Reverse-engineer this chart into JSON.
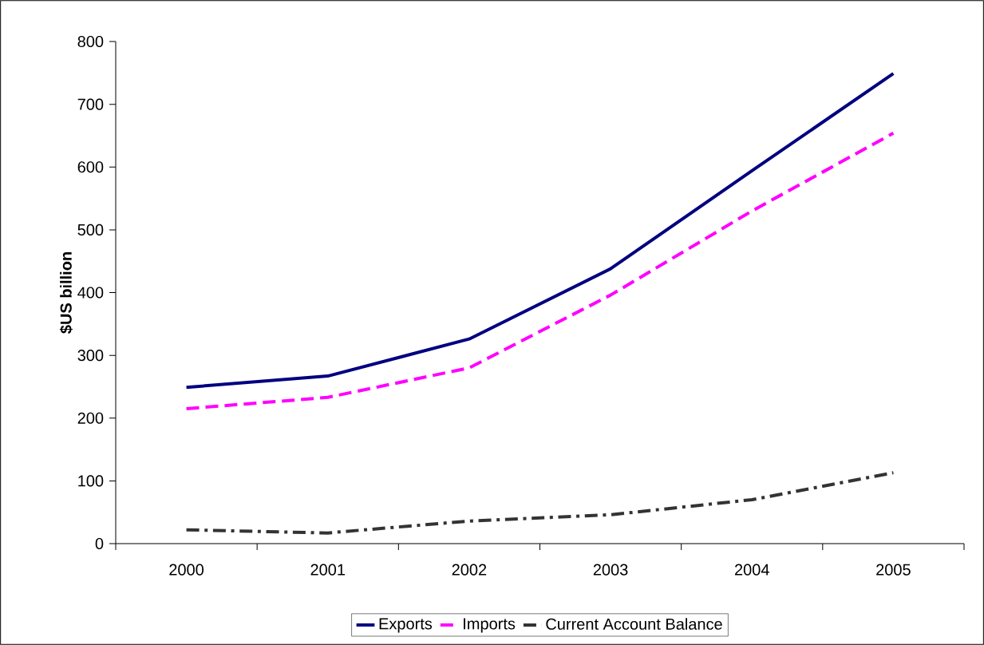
{
  "chart_data": {
    "type": "line",
    "ylabel": "$US billion",
    "categories": [
      "2000",
      "2001",
      "2002",
      "2003",
      "2004",
      "2005"
    ],
    "series": [
      {
        "name": "Exports",
        "color": "#000080",
        "line_style": "solid",
        "values": [
          249,
          267,
          326,
          438,
          594,
          749
        ]
      },
      {
        "name": "Imports",
        "color": "#ff00ff",
        "line_style": "dashed",
        "values": [
          215,
          233,
          280,
          396,
          530,
          654
        ]
      },
      {
        "name": "Current Account Balance",
        "color": "#333333",
        "line_style": "dashdot",
        "values": [
          22,
          17,
          36,
          46,
          70,
          113
        ]
      }
    ],
    "ylim": [
      0,
      800
    ],
    "yticks": [
      0,
      100,
      200,
      300,
      400,
      500,
      600,
      700,
      800
    ],
    "grid": false,
    "legend": "bottom",
    "marker": "none"
  }
}
